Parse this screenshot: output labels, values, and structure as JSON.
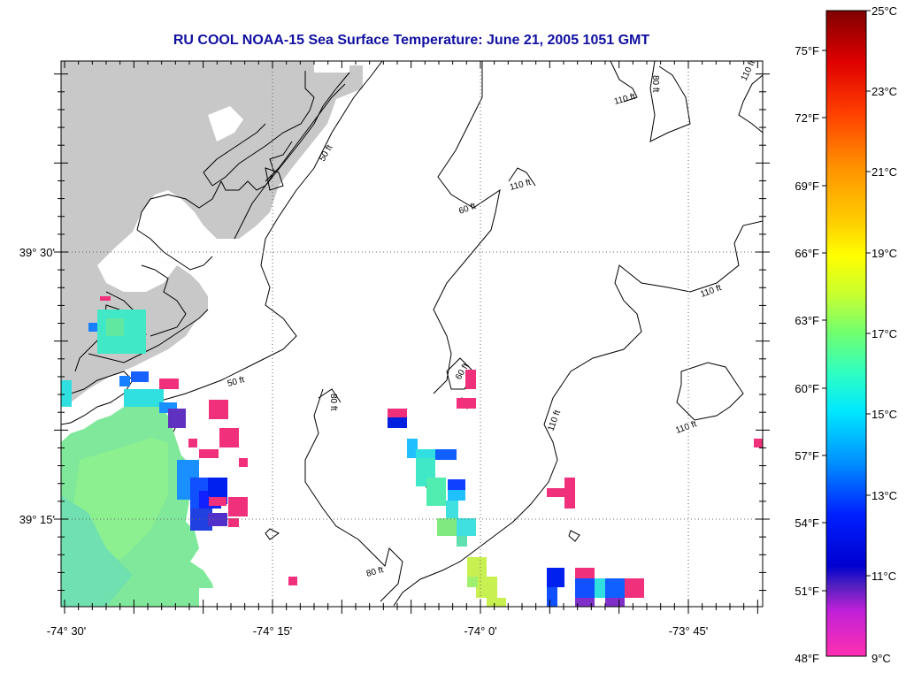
{
  "title": "RU COOL  NOAA-15  Sea Surface Temperature:  June 21, 2005 1051 GMT",
  "axes": {
    "lon_labels": [
      "-74° 30'",
      "-74° 15'",
      "-74° 0'",
      "-73° 45'"
    ],
    "lat_labels": [
      "39° 30'",
      "39° 15'"
    ]
  },
  "contour_labels": {
    "ft50": "50 ft",
    "ft60": "60 ft",
    "ft80": "80 ft",
    "ft110": "110 ft"
  },
  "colorbar": {
    "fahrenheit_labels": [
      "75°F",
      "72°F",
      "69°F",
      "66°F",
      "63°F",
      "60°F",
      "57°F",
      "54°F",
      "51°F",
      "48°F"
    ],
    "celsius_labels": [
      "25°C",
      "23°C",
      "21°C",
      "19°C",
      "17°C",
      "15°C",
      "13°C",
      "11°C",
      "9°C"
    ],
    "colors": [
      "#800000",
      "#d00000",
      "#ff3000",
      "#ff8000",
      "#ffc000",
      "#ffff00",
      "#c0ff30",
      "#60ff70",
      "#30ffc0",
      "#00e0ff",
      "#0080ff",
      "#0020ff",
      "#0000e0",
      "#6020c0",
      "#c020d0",
      "#ff20d0",
      "#ff30b0"
    ]
  },
  "colors": {
    "land": "#c8c8c8",
    "warm_water": "#7fe89a",
    "cool_water": "#40e0e0",
    "cold_blue": "#1040ff",
    "magenta": "#f0307a"
  }
}
